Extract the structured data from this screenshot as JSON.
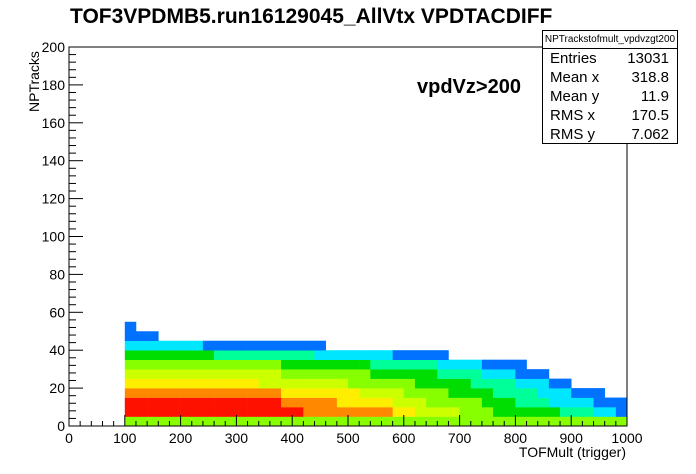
{
  "chart_data": {
    "type": "heatmap",
    "title": "TOF3VPDMB5.run16129045_AllVtx VPDTACDIFF",
    "xlabel": "TOFMult (trigger)",
    "ylabel": "NPTracks",
    "xlim": [
      0,
      1000
    ],
    "ylim": [
      0,
      200
    ],
    "x_ticks": [
      "0",
      "100",
      "200",
      "300",
      "400",
      "500",
      "600",
      "700",
      "800",
      "900",
      "1000"
    ],
    "y_ticks": [
      "0",
      "20",
      "40",
      "60",
      "80",
      "100",
      "120",
      "140",
      "160",
      "180",
      "200"
    ],
    "annotation": "vpdVz>200",
    "bin_width_x": 20,
    "bin_width_y": 5,
    "rows": [
      {
        "y0": 0,
        "x0": 100,
        "levels": [
          5,
          5,
          5,
          5,
          5,
          5,
          5,
          5,
          5,
          5,
          5,
          5,
          5,
          5,
          5,
          5,
          5,
          5,
          5,
          5,
          5,
          5,
          5,
          5,
          5,
          5,
          5,
          5,
          5,
          5,
          5,
          5,
          5,
          5,
          5,
          5,
          5,
          5,
          5,
          5,
          5,
          5,
          5,
          5,
          5
        ]
      },
      {
        "y0": 5,
        "x0": 100,
        "levels": [
          9,
          9,
          9,
          9,
          9,
          9,
          9,
          9,
          9,
          9,
          9,
          9,
          9,
          9,
          9,
          9,
          8,
          8,
          8,
          8,
          8,
          8,
          8,
          8,
          7,
          7,
          6,
          6,
          6,
          6,
          5,
          5,
          5,
          4,
          4,
          4,
          4,
          4,
          4,
          3,
          3,
          3,
          2,
          2,
          1
        ]
      },
      {
        "y0": 10,
        "x0": 100,
        "levels": [
          9,
          9,
          9,
          9,
          9,
          9,
          9,
          9,
          9,
          9,
          9,
          9,
          9,
          9,
          8,
          8,
          8,
          8,
          8,
          7,
          7,
          7,
          7,
          7,
          6,
          6,
          6,
          5,
          5,
          5,
          5,
          5,
          4,
          4,
          4,
          3,
          3,
          3,
          2,
          2,
          2,
          2,
          1,
          1,
          1
        ]
      },
      {
        "y0": 15,
        "x0": 100,
        "levels": [
          8,
          8,
          8,
          8,
          8,
          8,
          8,
          8,
          8,
          8,
          8,
          8,
          8,
          8,
          7,
          7,
          7,
          7,
          7,
          7,
          7,
          6,
          6,
          6,
          6,
          5,
          5,
          5,
          5,
          4,
          4,
          4,
          4,
          3,
          3,
          3,
          3,
          2,
          2,
          2,
          1,
          1,
          1,
          0,
          0
        ]
      },
      {
        "y0": 20,
        "x0": 100,
        "levels": [
          7,
          7,
          7,
          7,
          7,
          7,
          7,
          7,
          7,
          7,
          7,
          7,
          6,
          6,
          6,
          6,
          6,
          6,
          6,
          6,
          5,
          5,
          5,
          5,
          5,
          5,
          4,
          4,
          4,
          4,
          4,
          3,
          3,
          3,
          3,
          2,
          2,
          2,
          1,
          1,
          0,
          0,
          0,
          0,
          0
        ]
      },
      {
        "y0": 25,
        "x0": 100,
        "levels": [
          6,
          6,
          6,
          6,
          6,
          6,
          6,
          6,
          6,
          6,
          6,
          6,
          6,
          6,
          5,
          5,
          5,
          5,
          5,
          5,
          5,
          5,
          4,
          4,
          4,
          4,
          4,
          4,
          3,
          3,
          3,
          3,
          2,
          2,
          2,
          1,
          1,
          1,
          0,
          0,
          0,
          0,
          0,
          0,
          0
        ]
      },
      {
        "y0": 30,
        "x0": 100,
        "levels": [
          5,
          5,
          5,
          5,
          5,
          5,
          5,
          5,
          5,
          5,
          5,
          5,
          5,
          5,
          4,
          4,
          4,
          4,
          4,
          4,
          4,
          4,
          3,
          3,
          3,
          3,
          3,
          3,
          2,
          2,
          2,
          2,
          1,
          1,
          1,
          1,
          0,
          0,
          0,
          0,
          0,
          0,
          0,
          0,
          0
        ]
      },
      {
        "y0": 35,
        "x0": 100,
        "levels": [
          4,
          4,
          4,
          4,
          4,
          4,
          4,
          4,
          3,
          3,
          3,
          3,
          3,
          3,
          3,
          3,
          3,
          2,
          2,
          2,
          2,
          2,
          2,
          2,
          1,
          1,
          1,
          1,
          1,
          0,
          0,
          0,
          0,
          0,
          0,
          0,
          0,
          0,
          0,
          0,
          0,
          0,
          0,
          0,
          0
        ]
      },
      {
        "y0": 40,
        "x0": 100,
        "levels": [
          2,
          2,
          2,
          2,
          2,
          2,
          2,
          1,
          1,
          1,
          1,
          1,
          1,
          1,
          1,
          1,
          1,
          1,
          0,
          0,
          0,
          0,
          0,
          0,
          0,
          0,
          0,
          0,
          0,
          0,
          0,
          0,
          0,
          0,
          0,
          0,
          0,
          0,
          0,
          0,
          0,
          0,
          0,
          0,
          0
        ]
      },
      {
        "y0": 45,
        "x0": 100,
        "levels": [
          1,
          1,
          1,
          0,
          0,
          0,
          0,
          0,
          0,
          0,
          0,
          0,
          0,
          0,
          0,
          0,
          0,
          0,
          0,
          0,
          0,
          0,
          0,
          0,
          0,
          0,
          0,
          0,
          0,
          0,
          0,
          0,
          0,
          0,
          0,
          0,
          0,
          0,
          0,
          0,
          0,
          0,
          0,
          0,
          0
        ]
      },
      {
        "y0": 50,
        "x0": 100,
        "levels": [
          1,
          0,
          0,
          0,
          0,
          0,
          0,
          0,
          0,
          0,
          0,
          0,
          0,
          0,
          0,
          0,
          0,
          0,
          0,
          0,
          0,
          0,
          0,
          0,
          0,
          0,
          0,
          0,
          0,
          0,
          0,
          0,
          0,
          0,
          0,
          0,
          0,
          0,
          0,
          0,
          0,
          0,
          0,
          0,
          0
        ]
      }
    ],
    "palette": [
      "#ffffff",
      "#0072ff",
      "#00e6ff",
      "#00ff99",
      "#00dd00",
      "#88ff00",
      "#ccff00",
      "#ffee00",
      "#ff8800",
      "#ff1100"
    ]
  },
  "stats_box": {
    "name": "NPTrackstofmult_vpdvzgt200",
    "rows": [
      {
        "label": "Entries",
        "value": "13031"
      },
      {
        "label": "Mean x",
        "value": "318.8"
      },
      {
        "label": "Mean y",
        "value": "11.9"
      },
      {
        "label": "RMS x",
        "value": "170.5"
      },
      {
        "label": "RMS y",
        "value": "7.062"
      }
    ]
  }
}
